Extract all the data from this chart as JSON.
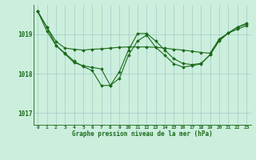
{
  "background_color": "#cceedd",
  "line_color": "#1a6b1a",
  "marker_color": "#1a6b1a",
  "xlabel": "Graphe pression niveau de la mer (hPa)",
  "ylim": [
    1016.7,
    1019.75
  ],
  "xlim": [
    -0.5,
    23.5
  ],
  "yticks": [
    1017,
    1018,
    1019
  ],
  "xticks": [
    0,
    1,
    2,
    3,
    4,
    5,
    6,
    7,
    8,
    9,
    10,
    11,
    12,
    13,
    14,
    15,
    16,
    17,
    18,
    19,
    20,
    21,
    22,
    23
  ],
  "series": [
    [
      1019.58,
      1019.18,
      1018.82,
      1018.65,
      1018.62,
      1018.6,
      1018.62,
      1018.63,
      1018.65,
      1018.67,
      1018.68,
      1018.68,
      1018.68,
      1018.67,
      1018.65,
      1018.62,
      1018.6,
      1018.57,
      1018.54,
      1018.52,
      1018.88,
      1019.03,
      1019.13,
      1019.22
    ],
    [
      1019.58,
      1019.08,
      1018.72,
      1018.52,
      1018.32,
      1018.18,
      1018.08,
      1017.7,
      1017.7,
      1018.05,
      1018.6,
      1019.02,
      1019.02,
      1018.83,
      1018.6,
      1018.38,
      1018.26,
      1018.23,
      1018.26,
      1018.48,
      1018.85,
      1019.03,
      1019.18,
      1019.26
    ],
    [
      1019.58,
      1019.18,
      1018.72,
      1018.5,
      1018.28,
      1018.2,
      1018.16,
      1018.12,
      1017.7,
      1017.88,
      1018.47,
      1018.83,
      1018.98,
      1018.67,
      1018.47,
      1018.25,
      1018.17,
      1018.2,
      1018.25,
      1018.48,
      1018.83,
      1019.03,
      1019.18,
      1019.28
    ]
  ]
}
